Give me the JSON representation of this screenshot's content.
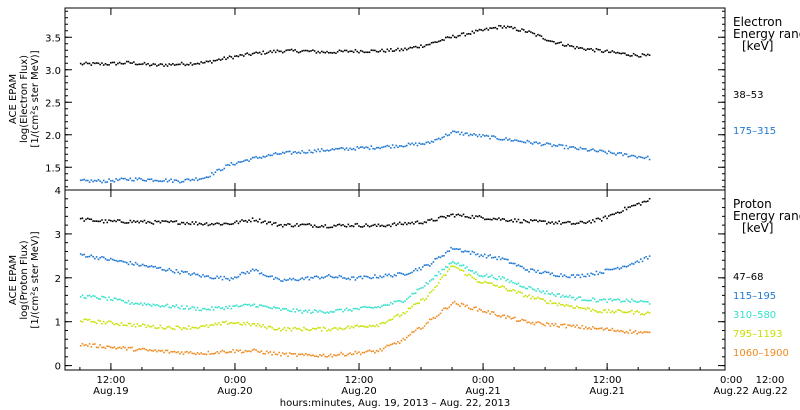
{
  "chart_data": [
    {
      "type": "scatter",
      "ylabel": [
        "ACE EPAM",
        "log(Electron Flux)",
        "[1/(cm²s ster MeV)]"
      ],
      "ylim": [
        1.15,
        3.95
      ],
      "yticks": [
        1.5,
        2.0,
        2.5,
        3.0,
        3.5
      ],
      "ytick_labels": [
        "1.5",
        "2.0",
        "2.5",
        "3.0",
        "3.5"
      ],
      "side_title": [
        "Electron",
        "Energy ranges",
        "[keV]"
      ],
      "series": [
        {
          "name": "38–53",
          "color": "#000000",
          "x": [
            0.0,
            0.2,
            0.4,
            0.6,
            0.8,
            1.0,
            1.2,
            1.4,
            1.6,
            1.8,
            2.0,
            2.2,
            2.4,
            2.6,
            2.8,
            3.0,
            3.2,
            3.4,
            3.6,
            3.8,
            4.0,
            4.2,
            4.4,
            4.6
          ],
          "y": [
            3.1,
            3.1,
            3.12,
            3.08,
            3.1,
            3.12,
            3.2,
            3.26,
            3.3,
            3.3,
            3.28,
            3.3,
            3.3,
            3.32,
            3.4,
            3.52,
            3.6,
            3.68,
            3.6,
            3.45,
            3.35,
            3.3,
            3.25,
            3.22
          ]
        },
        {
          "name": "175–315",
          "color": "#1e78d2",
          "x": [
            0.0,
            0.2,
            0.4,
            0.6,
            0.8,
            1.0,
            1.2,
            1.4,
            1.6,
            1.8,
            2.0,
            2.2,
            2.4,
            2.6,
            2.8,
            3.0,
            3.2,
            3.4,
            3.6,
            3.8,
            4.0,
            4.2,
            4.4,
            4.6
          ],
          "y": [
            1.3,
            1.3,
            1.33,
            1.32,
            1.3,
            1.35,
            1.55,
            1.65,
            1.72,
            1.75,
            1.78,
            1.8,
            1.82,
            1.85,
            1.88,
            2.05,
            2.0,
            1.95,
            1.9,
            1.85,
            1.8,
            1.75,
            1.7,
            1.65
          ]
        }
      ]
    },
    {
      "type": "scatter",
      "ylabel": [
        "ACE EPAM",
        "log(Proton Flux)",
        "[1/(cm²s ster MeV)]"
      ],
      "ylim": [
        -0.1,
        4.0
      ],
      "yticks": [
        0,
        1,
        2,
        3,
        4
      ],
      "ytick_labels": [
        "0",
        "1",
        "2",
        "3",
        "4"
      ],
      "side_title": [
        "Proton",
        "Energy ranges",
        "[keV]"
      ],
      "series": [
        {
          "name": "47–68",
          "color": "#000000",
          "x": [
            0.0,
            0.2,
            0.4,
            0.6,
            0.8,
            1.0,
            1.2,
            1.4,
            1.6,
            1.8,
            2.0,
            2.2,
            2.4,
            2.6,
            2.8,
            3.0,
            3.2,
            3.4,
            3.6,
            3.8,
            4.0,
            4.2,
            4.4,
            4.6
          ],
          "y": [
            3.35,
            3.3,
            3.3,
            3.28,
            3.28,
            3.25,
            3.25,
            3.35,
            3.22,
            3.22,
            3.2,
            3.22,
            3.2,
            3.25,
            3.3,
            3.45,
            3.4,
            3.35,
            3.3,
            3.28,
            3.25,
            3.35,
            3.6,
            3.8
          ]
        },
        {
          "name": "115–195",
          "color": "#1e78d2",
          "x": [
            0.0,
            0.2,
            0.4,
            0.6,
            0.8,
            1.0,
            1.2,
            1.4,
            1.6,
            1.8,
            2.0,
            2.2,
            2.4,
            2.6,
            2.8,
            3.0,
            3.2,
            3.4,
            3.6,
            3.8,
            4.0,
            4.2,
            4.4,
            4.6
          ],
          "y": [
            2.55,
            2.45,
            2.35,
            2.25,
            2.15,
            2.05,
            2.0,
            2.2,
            1.95,
            2.0,
            2.05,
            2.0,
            2.05,
            2.1,
            2.3,
            2.7,
            2.55,
            2.45,
            2.2,
            2.1,
            2.05,
            2.15,
            2.3,
            2.5
          ]
        },
        {
          "name": "310–580",
          "color": "#33e0cc",
          "x": [
            0.0,
            0.2,
            0.4,
            0.6,
            0.8,
            1.0,
            1.2,
            1.4,
            1.6,
            1.8,
            2.0,
            2.2,
            2.4,
            2.6,
            2.8,
            3.0,
            3.2,
            3.4,
            3.6,
            3.8,
            4.0,
            4.2,
            4.4,
            4.6
          ],
          "y": [
            1.6,
            1.55,
            1.45,
            1.4,
            1.35,
            1.3,
            1.35,
            1.4,
            1.3,
            1.25,
            1.25,
            1.3,
            1.35,
            1.5,
            1.9,
            2.4,
            2.1,
            2.0,
            1.8,
            1.65,
            1.55,
            1.5,
            1.5,
            1.45
          ]
        },
        {
          "name": "795–1193",
          "color": "#c8e000",
          "x": [
            0.0,
            0.2,
            0.4,
            0.6,
            0.8,
            1.0,
            1.2,
            1.4,
            1.6,
            1.8,
            2.0,
            2.2,
            2.4,
            2.6,
            2.8,
            3.0,
            3.2,
            3.4,
            3.6,
            3.8,
            4.0,
            4.2,
            4.4,
            4.6
          ],
          "y": [
            1.05,
            1.0,
            0.95,
            0.9,
            0.88,
            0.9,
            1.0,
            0.95,
            0.85,
            0.85,
            0.85,
            0.9,
            0.95,
            1.2,
            1.6,
            2.3,
            1.95,
            1.8,
            1.6,
            1.45,
            1.35,
            1.25,
            1.25,
            1.2
          ]
        },
        {
          "name": "1060–1900",
          "color": "#ef8a1e",
          "x": [
            0.0,
            0.2,
            0.4,
            0.6,
            0.8,
            1.0,
            1.2,
            1.4,
            1.6,
            1.8,
            2.0,
            2.2,
            2.4,
            2.6,
            2.8,
            3.0,
            3.2,
            3.4,
            3.6,
            3.8,
            4.0,
            4.2,
            4.4,
            4.6
          ],
          "y": [
            0.5,
            0.45,
            0.4,
            0.35,
            0.32,
            0.3,
            0.35,
            0.35,
            0.28,
            0.25,
            0.25,
            0.3,
            0.35,
            0.6,
            1.0,
            1.45,
            1.3,
            1.15,
            1.0,
            0.95,
            0.9,
            0.85,
            0.8,
            0.75
          ]
        }
      ]
    }
  ],
  "xaxis": {
    "xlim": [
      -0.12,
      5.2
    ],
    "ticks": [
      {
        "x": 0.25,
        "time": "12:00",
        "date": "Aug.19"
      },
      {
        "x": 1.25,
        "time": "0:00",
        "date": "Aug.20"
      },
      {
        "x": 2.25,
        "time": "12:00",
        "date": "Aug.20"
      },
      {
        "x": 3.25,
        "time": "0:00",
        "date": "Aug.21"
      },
      {
        "x": 4.25,
        "time": "12:00",
        "date": "Aug.21"
      },
      {
        "x": 5.25,
        "time": "0:00",
        "date": "Aug.22"
      },
      {
        "x": 6.25,
        "time": "12:00",
        "date": "Aug.22"
      }
    ],
    "label": "hours:minutes, Aug. 19, 2013 – Aug. 22, 2013"
  }
}
